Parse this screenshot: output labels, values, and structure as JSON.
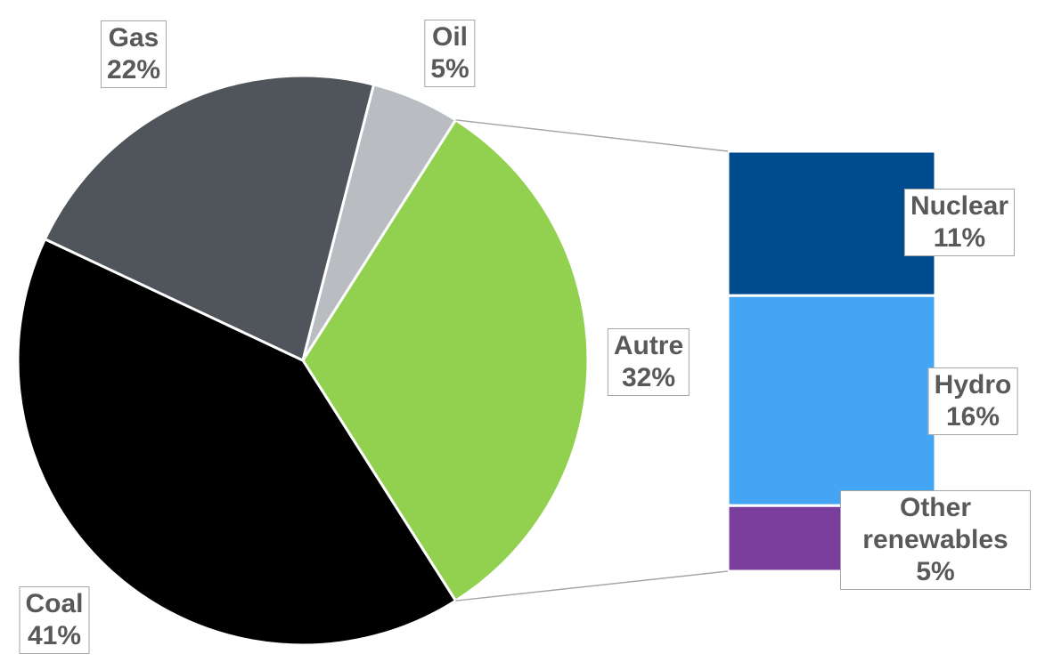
{
  "chart_data": {
    "type": "pie",
    "categories": [
      "Autre",
      "Coal",
      "Gas",
      "Oil"
    ],
    "values": [
      32,
      41,
      22,
      5
    ],
    "value_labels": [
      "32%",
      "41%",
      "22%",
      "5%"
    ],
    "colors": [
      "#92d050",
      "#000000",
      "#50555c",
      "#b9bcc0"
    ],
    "breakdown": {
      "categories": [
        "Nuclear",
        "Hydro",
        "Other renewables"
      ],
      "values": [
        11,
        16,
        5
      ],
      "value_labels": [
        "11%",
        "16%",
        "5%"
      ],
      "colors": [
        "#004b8d",
        "#45a5f5",
        "#7a3f9d"
      ]
    }
  }
}
